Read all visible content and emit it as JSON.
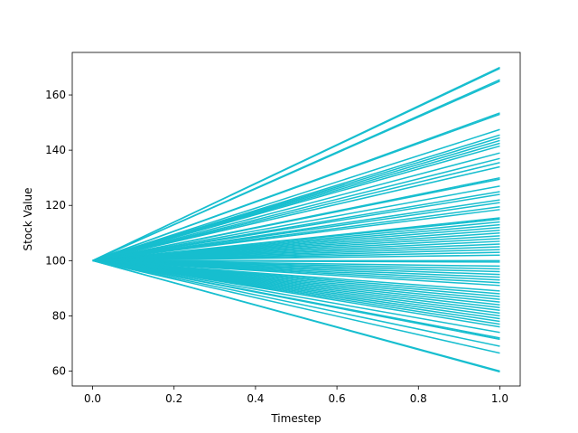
{
  "chart_data": {
    "type": "line",
    "title": "",
    "xlabel": "Timestep",
    "ylabel": "Stock Value",
    "xlim": [
      -0.05,
      1.05
    ],
    "ylim": [
      54.6,
      175.4
    ],
    "grid": false,
    "legend": "none",
    "line_color": "#17becf",
    "x_ticks": [
      0.0,
      0.2,
      0.4,
      0.6,
      0.8,
      1.0
    ],
    "x_tick_labels": [
      "0.0",
      "0.2",
      "0.4",
      "0.6",
      "0.8",
      "1.0"
    ],
    "y_ticks": [
      60,
      80,
      100,
      120,
      140,
      160
    ],
    "y_tick_labels": [
      "60",
      "80",
      "100",
      "120",
      "140",
      "160"
    ],
    "x": [
      0.0,
      1.0
    ],
    "start_value": 100,
    "end_values": [
      170.0,
      169.6,
      165.5,
      165.0,
      153.5,
      153.0,
      147.5,
      145.5,
      144.5,
      143.5,
      142.5,
      141.5,
      139.0,
      137.0,
      135.5,
      134.0,
      130.0,
      129.5,
      127.0,
      125.0,
      124.0,
      122.0,
      121.0,
      119.5,
      118.5,
      115.5,
      115.0,
      114.0,
      113.0,
      112.0,
      111.0,
      110.0,
      109.0,
      108.0,
      107.0,
      106.0,
      105.0,
      104.0,
      103.0,
      102.0,
      100.0,
      99.5,
      98.0,
      97.0,
      96.0,
      95.0,
      94.0,
      93.0,
      92.0,
      91.0,
      89.0,
      88.0,
      87.0,
      86.0,
      85.0,
      84.0,
      83.0,
      82.0,
      81.0,
      80.0,
      79.0,
      78.0,
      77.0,
      76.0,
      74.0,
      72.0,
      71.5,
      69.0,
      66.5,
      60.0,
      59.7
    ]
  }
}
